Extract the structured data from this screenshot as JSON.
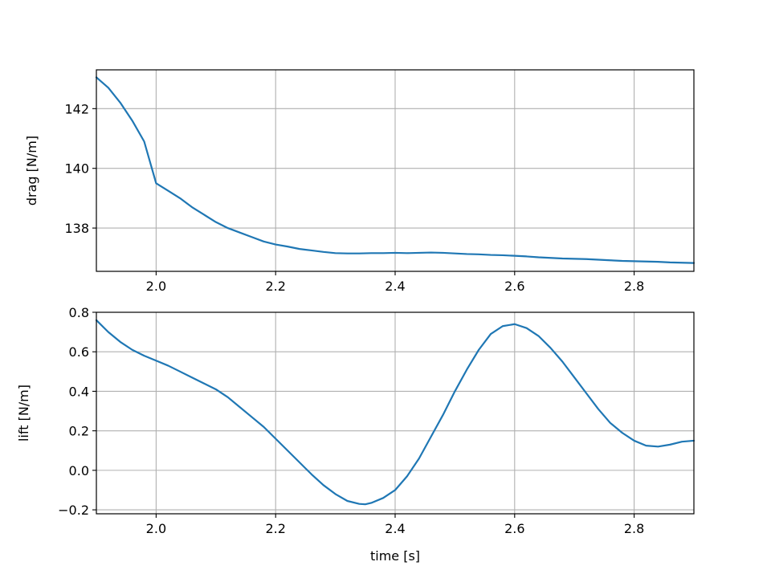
{
  "chart_data": [
    {
      "type": "line",
      "xlabel": "",
      "ylabel": "drag [N/m]",
      "xlim": [
        1.9,
        2.9
      ],
      "ylim": [
        136.55,
        143.3
      ],
      "xticks": [
        2.0,
        2.2,
        2.4,
        2.6,
        2.8
      ],
      "xtick_labels": [
        "2.0",
        "2.2",
        "2.4",
        "2.6",
        "2.8"
      ],
      "yticks": [
        138,
        140,
        142
      ],
      "ytick_labels": [
        "138",
        "140",
        "142"
      ],
      "grid": true,
      "color": "#1f77b4",
      "series": [
        {
          "x": [
            1.9,
            1.92,
            1.94,
            1.96,
            1.98,
            2.0,
            2.02,
            2.04,
            2.06,
            2.08,
            2.1,
            2.12,
            2.14,
            2.16,
            2.18,
            2.2,
            2.22,
            2.24,
            2.26,
            2.28,
            2.3,
            2.32,
            2.34,
            2.36,
            2.38,
            2.4,
            2.42,
            2.44,
            2.46,
            2.48,
            2.5,
            2.52,
            2.54,
            2.56,
            2.58,
            2.6,
            2.62,
            2.64,
            2.66,
            2.68,
            2.7,
            2.72,
            2.74,
            2.76,
            2.78,
            2.8,
            2.82,
            2.84,
            2.86,
            2.88,
            2.9
          ],
          "y": [
            143.05,
            142.7,
            142.2,
            141.6,
            140.9,
            139.5,
            139.25,
            139.0,
            138.7,
            138.45,
            138.2,
            138.0,
            137.85,
            137.7,
            137.55,
            137.45,
            137.38,
            137.3,
            137.25,
            137.2,
            137.16,
            137.15,
            137.15,
            137.16,
            137.16,
            137.17,
            137.16,
            137.17,
            137.18,
            137.17,
            137.15,
            137.13,
            137.12,
            137.1,
            137.09,
            137.07,
            137.05,
            137.02,
            137.0,
            136.98,
            136.97,
            136.96,
            136.94,
            136.92,
            136.9,
            136.89,
            136.88,
            136.87,
            136.85,
            136.84,
            136.83
          ]
        }
      ]
    },
    {
      "type": "line",
      "xlabel": "time [s]",
      "ylabel": "lift [N/m]",
      "xlim": [
        1.9,
        2.9
      ],
      "ylim": [
        -0.22,
        0.8
      ],
      "xticks": [
        2.0,
        2.2,
        2.4,
        2.6,
        2.8
      ],
      "xtick_labels": [
        "2.0",
        "2.2",
        "2.4",
        "2.6",
        "2.8"
      ],
      "yticks": [
        -0.2,
        0.0,
        0.2,
        0.4,
        0.6,
        0.8
      ],
      "ytick_labels": [
        "−0.2",
        "0.0",
        "0.2",
        "0.4",
        "0.6",
        "0.8"
      ],
      "grid": true,
      "color": "#1f77b4",
      "series": [
        {
          "x": [
            1.9,
            1.92,
            1.94,
            1.96,
            1.98,
            2.0,
            2.02,
            2.04,
            2.06,
            2.08,
            2.1,
            2.12,
            2.14,
            2.16,
            2.18,
            2.2,
            2.22,
            2.24,
            2.26,
            2.28,
            2.3,
            2.32,
            2.34,
            2.35,
            2.36,
            2.38,
            2.4,
            2.42,
            2.44,
            2.46,
            2.48,
            2.5,
            2.52,
            2.54,
            2.56,
            2.58,
            2.6,
            2.62,
            2.64,
            2.66,
            2.68,
            2.7,
            2.72,
            2.74,
            2.76,
            2.78,
            2.8,
            2.82,
            2.84,
            2.86,
            2.88,
            2.9
          ],
          "y": [
            0.76,
            0.7,
            0.65,
            0.61,
            0.58,
            0.555,
            0.53,
            0.5,
            0.47,
            0.44,
            0.41,
            0.37,
            0.32,
            0.27,
            0.22,
            0.16,
            0.1,
            0.04,
            -0.02,
            -0.075,
            -0.12,
            -0.155,
            -0.17,
            -0.172,
            -0.165,
            -0.14,
            -0.1,
            -0.03,
            0.06,
            0.17,
            0.28,
            0.4,
            0.51,
            0.61,
            0.69,
            0.73,
            0.74,
            0.72,
            0.68,
            0.62,
            0.55,
            0.47,
            0.39,
            0.31,
            0.24,
            0.19,
            0.15,
            0.125,
            0.12,
            0.13,
            0.145,
            0.15
          ]
        }
      ]
    }
  ]
}
